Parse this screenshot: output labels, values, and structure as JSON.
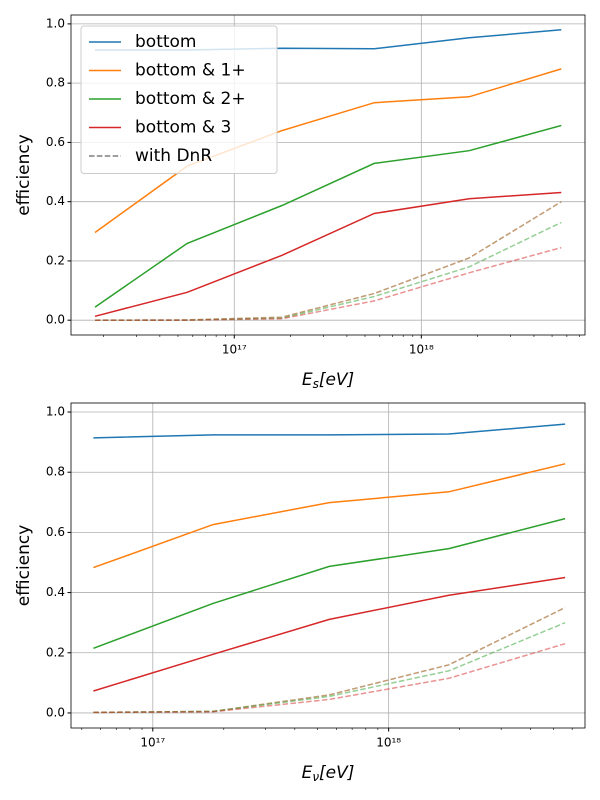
{
  "chart_data": [
    {
      "type": "line",
      "log_x": true,
      "grid": true,
      "legend": "upper left",
      "xlabel": [
        "E",
        "s",
        "[eV]"
      ],
      "ylabel": "efficiency",
      "x": [
        1.8e+16,
        5.6e+16,
        1.8e+17,
        5.6e+17,
        1.8e+18,
        5.6e+18
      ],
      "xlim": [
        1.34e+16,
        7.5e+18
      ],
      "xticks": [
        {
          "value": 1e+17,
          "label": "10¹⁷"
        },
        {
          "value": 1e+18,
          "label": "10¹⁸"
        }
      ],
      "ylim": [
        -0.05,
        1.03
      ],
      "yticks": [
        {
          "value": 0,
          "label": "0.0"
        },
        0.2,
        0.4,
        0.6,
        0.8,
        {
          "value": 1,
          "label": "1.0"
        }
      ],
      "series": [
        {
          "name": "bottom",
          "color": "#1f77b4",
          "values": [
            0.912,
            0.912,
            0.918,
            0.916,
            0.953,
            0.98
          ],
          "dnr_values": [
            0,
            0.001,
            0.01,
            0.09,
            0.21,
            0.4
          ]
        },
        {
          "name": "bottom & 1+",
          "color": "#ff7f0e",
          "values": [
            0.296,
            0.52,
            0.64,
            0.734,
            0.754,
            0.848
          ],
          "dnr_values": [
            0,
            0.001,
            0.01,
            0.09,
            0.21,
            0.4
          ]
        },
        {
          "name": "bottom & 2+",
          "color": "#2ca02c",
          "values": [
            0.044,
            0.259,
            0.387,
            0.529,
            0.572,
            0.657
          ],
          "dnr_values": [
            0,
            0,
            0.007,
            0.08,
            0.18,
            0.33
          ]
        },
        {
          "name": "bottom & 3",
          "color": "#d62728",
          "values": [
            0.013,
            0.094,
            0.219,
            0.36,
            0.41,
            0.431
          ],
          "dnr_values": [
            0,
            0,
            0.005,
            0.065,
            0.16,
            0.245
          ]
        }
      ],
      "dnr_legend": {
        "name": "with DnR",
        "color": "#7f7f7f"
      }
    },
    {
      "type": "line",
      "log_x": true,
      "grid": true,
      "xlabel": [
        "E",
        "ν",
        "[eV]"
      ],
      "ylabel": "efficiency",
      "x": [
        5.6e+16,
        1.8e+17,
        5.6e+17,
        1.8e+18,
        5.6e+18
      ],
      "xlim": [
        4.5e+16,
        6.8e+18
      ],
      "xticks": [
        {
          "value": 1e+17,
          "label": "10¹⁷"
        },
        {
          "value": 1e+18,
          "label": "10¹⁸"
        }
      ],
      "ylim": [
        -0.05,
        1.03
      ],
      "yticks": [
        {
          "value": 0,
          "label": "0.0"
        },
        0.2,
        0.4,
        0.6,
        0.8,
        {
          "value": 1,
          "label": "1.0"
        }
      ],
      "series": [
        {
          "color": "#1f77b4",
          "values": [
            0.914,
            0.924,
            0.924,
            0.927,
            0.96
          ],
          "dnr_values": [
            0.002,
            0.005,
            0.06,
            0.16,
            0.35
          ]
        },
        {
          "color": "#ff7f0e",
          "values": [
            0.483,
            0.626,
            0.699,
            0.735,
            0.828
          ],
          "dnr_values": [
            0.002,
            0.005,
            0.06,
            0.16,
            0.35
          ]
        },
        {
          "color": "#2ca02c",
          "values": [
            0.215,
            0.364,
            0.487,
            0.546,
            0.646
          ],
          "dnr_values": [
            0.002,
            0.005,
            0.055,
            0.14,
            0.3
          ]
        },
        {
          "color": "#d62728",
          "values": [
            0.073,
            0.195,
            0.311,
            0.391,
            0.45
          ],
          "dnr_values": [
            0.002,
            0.004,
            0.045,
            0.115,
            0.23
          ]
        }
      ]
    }
  ]
}
